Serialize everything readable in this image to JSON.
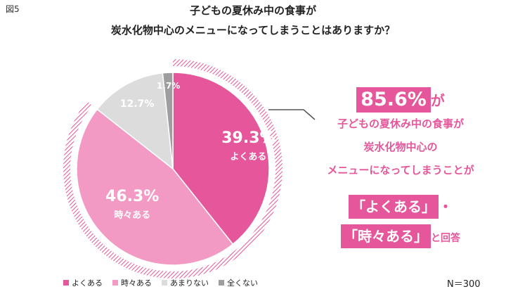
{
  "figure_label": "図5",
  "title_line1": "子どもの夏休み中の食事が",
  "title_line2": "炭水化物中心のメニューになってしまうことはありますか？",
  "sample_size": "N＝300",
  "colors": {
    "often": "#e5579a",
    "sometimes": "#f29ac4",
    "rarely": "#dcdcdc",
    "never": "#9e9e9e",
    "accent": "#e5579a"
  },
  "chart_data": {
    "type": "pie",
    "title": "子どもの夏休み中の食事が 炭水化物中心のメニューになってしまうことはありますか？",
    "categories": [
      "よくある",
      "時々ある",
      "あまりない",
      "全くない"
    ],
    "values": [
      39.3,
      46.3,
      12.7,
      1.7
    ],
    "value_labels": [
      "39.3%",
      "46.3%",
      "12.7%",
      "1.7%"
    ],
    "legend_position": "bottom-left"
  },
  "callout": {
    "highlight": "85.6%",
    "suffix": "が",
    "line1": "子どもの夏休み中の食事が",
    "line2": "炭水化物中心の",
    "line3": "メニューになってしまうことが",
    "tag1": "「よくある」",
    "tag_sep": "・",
    "tag2": "「時々ある」",
    "closing": "と回答"
  }
}
